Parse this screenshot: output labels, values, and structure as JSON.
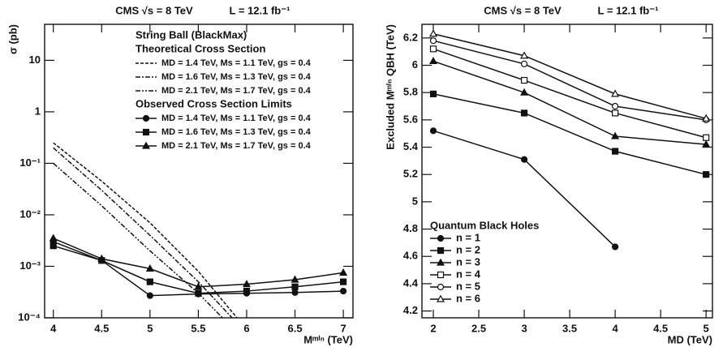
{
  "chart_data": [
    {
      "type": "line",
      "title": "CMS √s = 8 TeV",
      "subtitle": "L = 12.1 fb⁻¹",
      "xlabel": "Mᵐⁱⁿ (TeV)",
      "ylabel": "σ (pb)",
      "log_y": true,
      "grid": false,
      "legend": "upper right",
      "legend_title": "String Ball (BlackMax)",
      "xlim": [
        3.91,
        7.1
      ],
      "xticks": [
        4,
        4.5,
        5,
        5.5,
        6,
        6.5,
        7
      ],
      "ylim": [
        0.0001,
        50
      ],
      "yticks": [
        {
          "value": 0.0001,
          "label": "10⁻⁴"
        },
        {
          "value": 0.001,
          "label": "10⁻³"
        },
        {
          "value": 0.01,
          "label": "10⁻²"
        },
        {
          "value": 0.1,
          "label": "10⁻¹"
        },
        1,
        10
      ],
      "series_groups": [
        {
          "title": "Theoretical Cross Section",
          "series": [
            {
              "name": "MD = 1.4 TeV, Ms = 1.1 TeV, gs = 0.4",
              "color": "#111111",
              "dash": "4,2",
              "marker": "none",
              "x": [
                4,
                4.5,
                5,
                5.5,
                5.9
              ],
              "values": [
                0.25,
                0.045,
                0.007,
                0.0008,
                0.0001
              ]
            },
            {
              "name": "MD = 1.6 TeV, Ms = 1.3 TeV, gs = 0.4",
              "color": "#111111",
              "dash": "6,2,2,2",
              "marker": "none",
              "x": [
                4,
                4.5,
                5,
                5.5,
                5.85
              ],
              "values": [
                0.2,
                0.03,
                0.004,
                0.0005,
                0.0001
              ]
            },
            {
              "name": "MD = 2.1 TeV, Ms = 1.7 TeV, gs = 0.4",
              "color": "#111111",
              "dash": "6,2,2,2,2,2",
              "marker": "none",
              "x": [
                4,
                4.5,
                5,
                5.5,
                5.75
              ],
              "values": [
                0.1,
                0.015,
                0.002,
                0.0003,
                0.0001
              ]
            }
          ]
        },
        {
          "title": "Observed Cross Section Limits",
          "series": [
            {
              "name": "MD = 1.4 TeV, Ms = 1.1 TeV, gs = 0.4",
              "color": "#111111",
              "dash": "none",
              "marker": "circle",
              "filled": true,
              "x": [
                4,
                4.5,
                5,
                5.5,
                6,
                6.5,
                7
              ],
              "values": [
                0.003,
                0.0013,
                0.00027,
                0.00029,
                0.0003,
                0.00031,
                0.00033
              ]
            },
            {
              "name": "MD = 1.6 TeV, Ms = 1.3 TeV, gs = 0.4",
              "color": "#111111",
              "dash": "none",
              "marker": "square",
              "filled": true,
              "x": [
                4,
                4.5,
                5,
                5.5,
                6,
                6.5,
                7
              ],
              "values": [
                0.0025,
                0.0013,
                0.0005,
                0.0003,
                0.00033,
                0.0004,
                0.0005
              ]
            },
            {
              "name": "MD = 2.1 TeV, Ms = 1.7 TeV, gs = 0.4",
              "color": "#111111",
              "dash": "none",
              "marker": "triangle",
              "filled": true,
              "x": [
                4,
                4.5,
                5,
                5.5,
                6,
                6.5,
                7
              ],
              "values": [
                0.0035,
                0.0014,
                0.0009,
                0.0004,
                0.00045,
                0.00055,
                0.00075
              ]
            }
          ]
        }
      ]
    },
    {
      "type": "line",
      "title": "CMS √s = 8 TeV",
      "subtitle": "L = 12.1 fb⁻¹",
      "xlabel": "MD (TeV)",
      "ylabel": "Excluded Mᵐⁱⁿ QBH (TeV)",
      "log_y": false,
      "grid": false,
      "legend": "lower left",
      "legend_title": "Quantum Black Holes",
      "xlim": [
        1.875,
        5.07
      ],
      "xticks": [
        2,
        2.5,
        3,
        3.5,
        4,
        4.5,
        5
      ],
      "ylim": [
        4.15,
        6.3
      ],
      "yticks": [
        4.2,
        4.4,
        4.6,
        4.8,
        5,
        5.2,
        5.4,
        5.6,
        5.8,
        6,
        6.2
      ],
      "x": [
        2,
        3,
        4,
        5
      ],
      "series": [
        {
          "name": "n = 1",
          "color": "#111111",
          "dash": "none",
          "marker": "circle",
          "filled": true,
          "values": [
            5.52,
            5.31,
            4.67,
            null
          ]
        },
        {
          "name": "n = 2",
          "color": "#111111",
          "dash": "none",
          "marker": "square",
          "filled": true,
          "values": [
            5.79,
            5.65,
            5.37,
            5.2
          ]
        },
        {
          "name": "n = 3",
          "color": "#111111",
          "dash": "none",
          "marker": "triangle",
          "filled": true,
          "values": [
            6.03,
            5.8,
            5.48,
            5.42
          ]
        },
        {
          "name": "n = 4",
          "color": "#111111",
          "dash": "none",
          "marker": "square",
          "filled": false,
          "values": [
            6.12,
            5.89,
            5.65,
            5.47
          ]
        },
        {
          "name": "n = 5",
          "color": "#111111",
          "dash": "none",
          "marker": "circle",
          "filled": false,
          "values": [
            6.18,
            6.01,
            5.7,
            5.6
          ]
        },
        {
          "name": "n = 6",
          "color": "#111111",
          "dash": "none",
          "marker": "triangle",
          "filled": false,
          "values": [
            6.23,
            6.07,
            5.79,
            5.61
          ]
        }
      ]
    }
  ]
}
